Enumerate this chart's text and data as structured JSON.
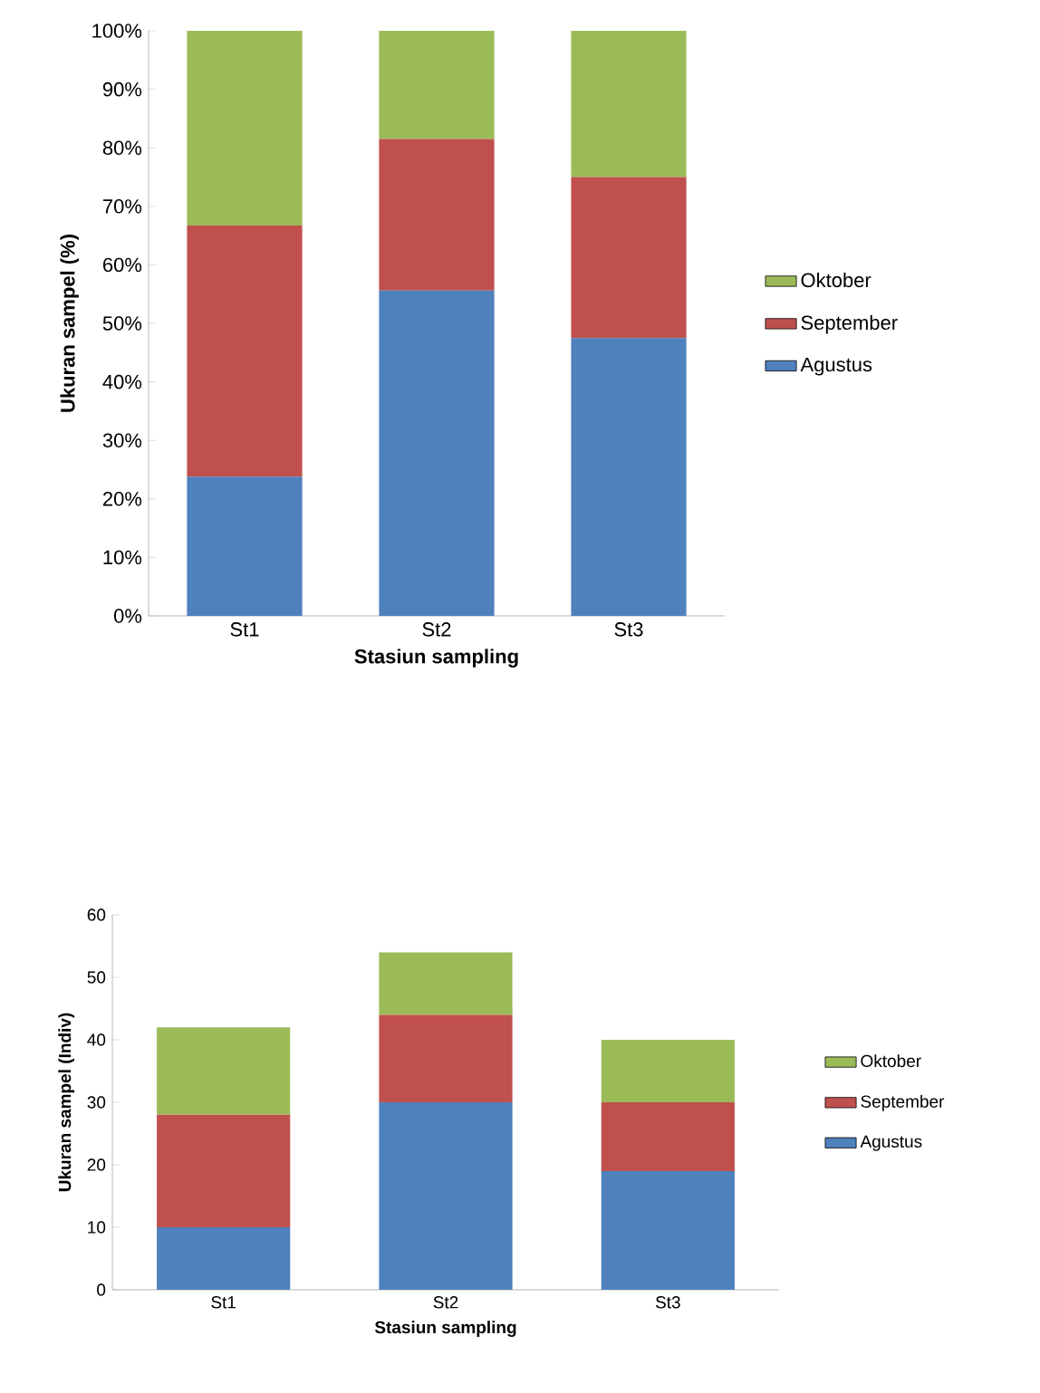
{
  "chart_data": [
    {
      "type": "bar",
      "stacked": true,
      "categories": [
        "St1",
        "St2",
        "St3"
      ],
      "xlabel": "Stasiun sampling",
      "ylabel": "Ukuran sampel (%)",
      "ylim": [
        0,
        100
      ],
      "yticks": [
        {
          "value": 0,
          "label": "0%"
        },
        {
          "value": 10,
          "label": "10%"
        },
        {
          "value": 20,
          "label": "20%"
        },
        {
          "value": 30,
          "label": "30%"
        },
        {
          "value": 40,
          "label": "40%"
        },
        {
          "value": 50,
          "label": "50%"
        },
        {
          "value": 60,
          "label": "60%"
        },
        {
          "value": 70,
          "label": "70%"
        },
        {
          "value": 80,
          "label": "80%"
        },
        {
          "value": 90,
          "label": "90%"
        },
        {
          "value": 100,
          "label": "100%"
        }
      ],
      "legend": "right",
      "grid": false,
      "series": [
        {
          "name": "Agustus",
          "color": "#4f81bd",
          "values": [
            23.8,
            55.6,
            47.5
          ]
        },
        {
          "name": "September",
          "color": "#c0504d",
          "values": [
            42.9,
            25.9,
            27.5
          ]
        },
        {
          "name": "Oktober",
          "color": "#9bbb59",
          "values": [
            33.3,
            18.5,
            25.0
          ]
        }
      ]
    },
    {
      "type": "bar",
      "stacked": true,
      "categories": [
        "St1",
        "St2",
        "St3"
      ],
      "xlabel": "Stasiun sampling",
      "ylabel": "Ukuran sampel (Indiv)",
      "ylim": [
        0,
        60
      ],
      "yticks": [
        0,
        10,
        20,
        30,
        40,
        50,
        60
      ],
      "legend": "right",
      "grid": false,
      "series": [
        {
          "name": "Agustus",
          "color": "#4f81bd",
          "values": [
            10,
            30,
            19
          ]
        },
        {
          "name": "September",
          "color": "#c0504d",
          "values": [
            18,
            14,
            11
          ]
        },
        {
          "name": "Oktober",
          "color": "#9bbb59",
          "values": [
            14,
            10,
            10
          ]
        }
      ]
    }
  ]
}
